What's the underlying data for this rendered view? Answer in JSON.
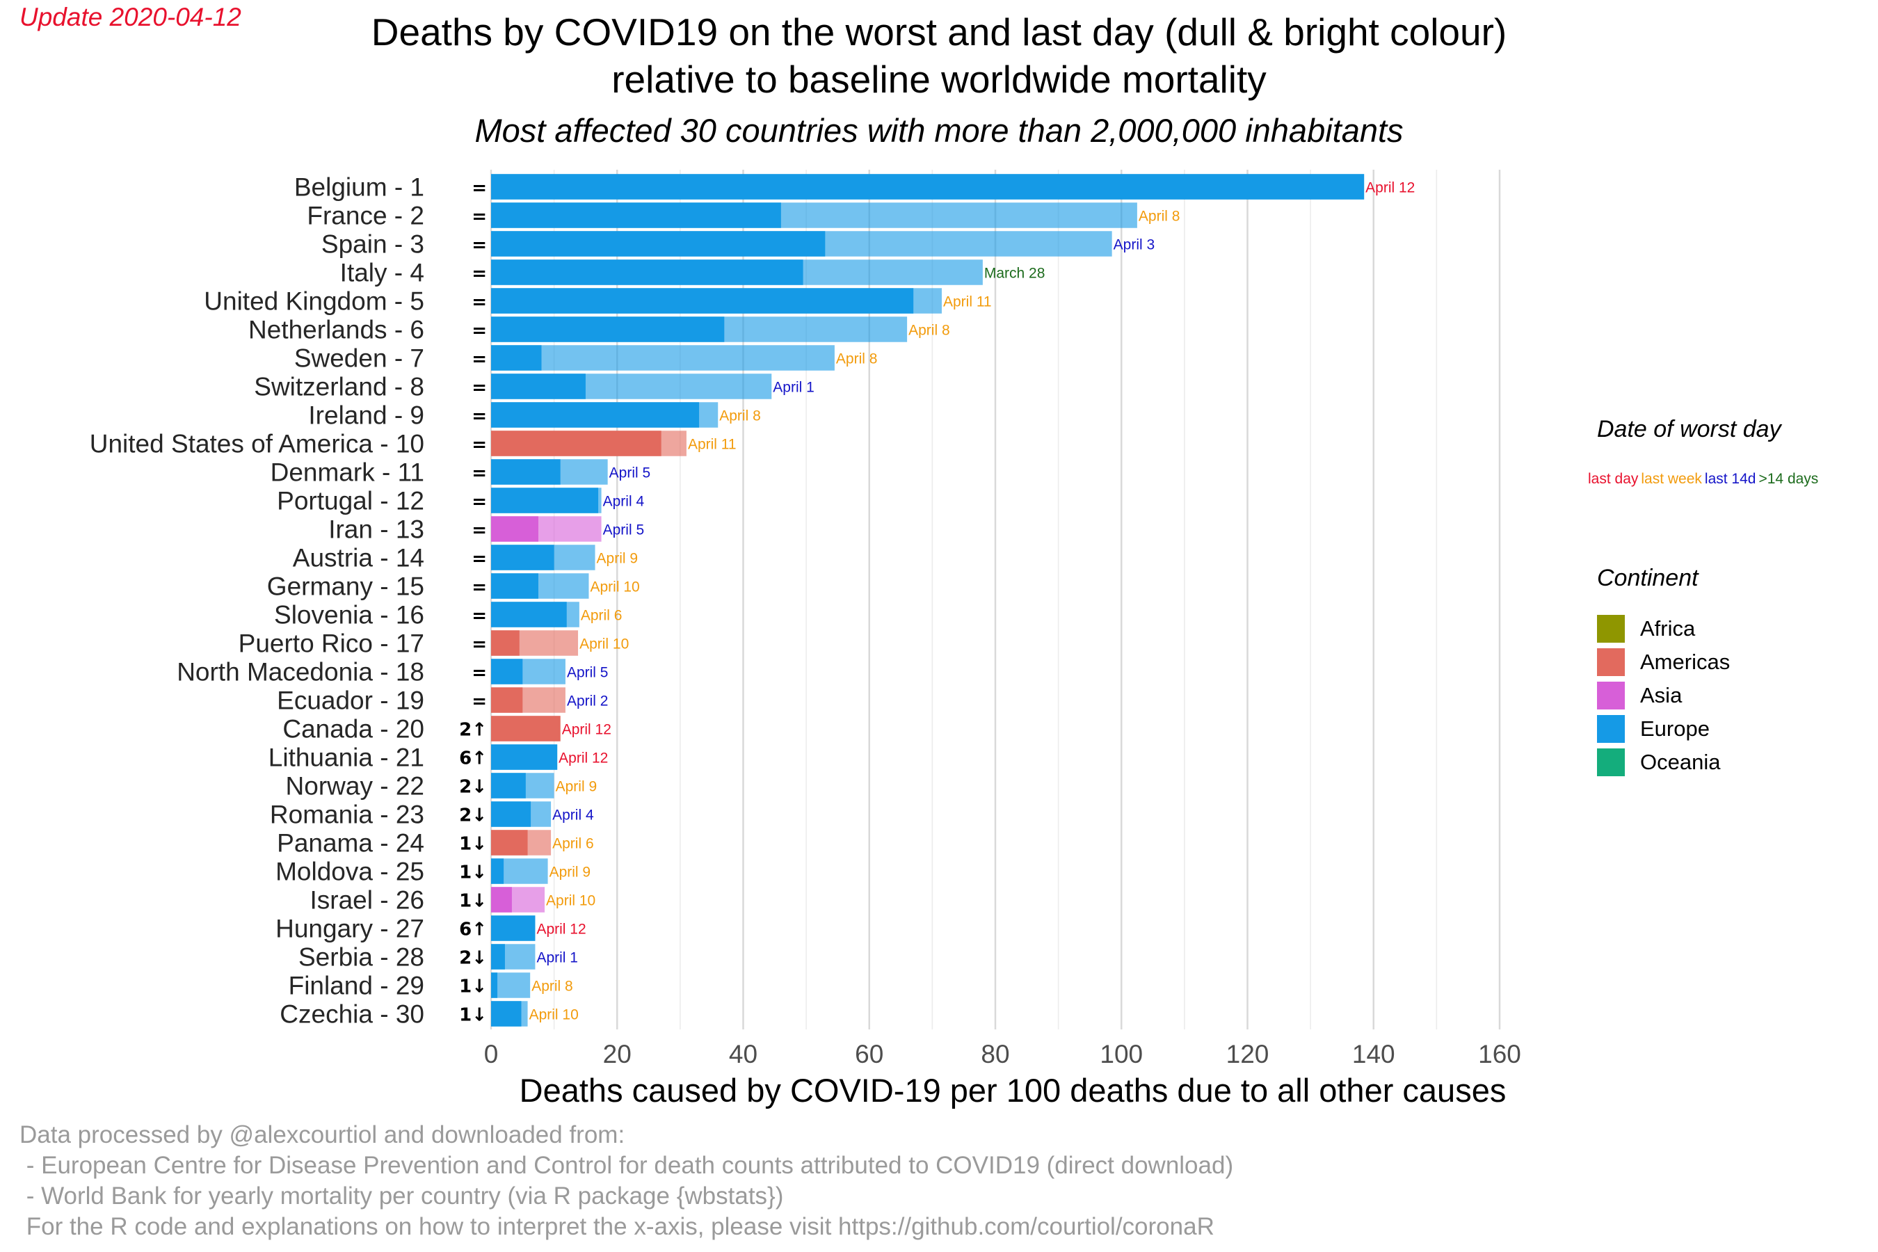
{
  "update_label": "Update 2020-04-12",
  "title_line1": "Deaths by COVID19 on the worst and last day (dull & bright colour)",
  "title_line2": "relative to baseline worldwide mortality",
  "subtitle": "Most affected 30 countries with more than 2,000,000 inhabitants",
  "colors": {
    "Africa": "#8f9600",
    "Americas": "#e26a5e",
    "Asia": "#d75fd8",
    "Europe": "#159ae6",
    "Oceania": "#14ad7c",
    "date_last_day": "#e8112d",
    "date_last_week": "#f29b0c",
    "date_last_14d": "#1414c8",
    "date_older": "#1c6b1c"
  },
  "legend_date": {
    "title": "Date of worst day",
    "items": [
      {
        "label": "last day",
        "color": "#e8112d"
      },
      {
        "label": "last week",
        "color": "#f29b0c"
      },
      {
        "label": "last 14d",
        "color": "#1414c8"
      },
      {
        "label": ">14 days",
        "color": "#1c6b1c"
      }
    ]
  },
  "legend_continent": {
    "title": "Continent",
    "items": [
      {
        "label": "Africa",
        "color": "#8f9600"
      },
      {
        "label": "Americas",
        "color": "#e26a5e"
      },
      {
        "label": "Asia",
        "color": "#d75fd8"
      },
      {
        "label": "Europe",
        "color": "#159ae6"
      },
      {
        "label": "Oceania",
        "color": "#14ad7c"
      }
    ]
  },
  "chart_data": {
    "type": "bar",
    "orientation": "horizontal",
    "xlabel": "Deaths caused by COVID-19 per 100 deaths due to all other causes",
    "ylabel": "",
    "xlim": [
      0,
      160
    ],
    "xticks": [
      0,
      20,
      40,
      60,
      80,
      100,
      120,
      140,
      160
    ],
    "grid": true,
    "legend_position": "right",
    "categories": [
      "Belgium - 1",
      "France - 2",
      "Spain - 3",
      "Italy - 4",
      "United Kingdom - 5",
      "Netherlands - 6",
      "Sweden - 7",
      "Switzerland - 8",
      "Ireland - 9",
      "United States of America - 10",
      "Denmark - 11",
      "Portugal - 12",
      "Iran - 13",
      "Austria - 14",
      "Germany - 15",
      "Slovenia - 16",
      "Puerto Rico - 17",
      "North Macedonia - 18",
      "Ecuador - 19",
      "Canada - 20",
      "Lithuania - 21",
      "Norway - 22",
      "Romania - 23",
      "Panama - 24",
      "Moldova - 25",
      "Israel - 26",
      "Hungary - 27",
      "Serbia - 28",
      "Finland - 29",
      "Czechia - 30"
    ],
    "rank_change": [
      "=",
      "=",
      "=",
      "=",
      "=",
      "=",
      "=",
      "=",
      "=",
      "=",
      "=",
      "=",
      "=",
      "=",
      "=",
      "=",
      "=",
      "=",
      "=",
      "2↑",
      "6↑",
      "2↓",
      "2↓",
      "1↓",
      "1↓",
      "1↓",
      "6↑",
      "2↓",
      "1↓",
      "1↓"
    ],
    "continent": [
      "Europe",
      "Europe",
      "Europe",
      "Europe",
      "Europe",
      "Europe",
      "Europe",
      "Europe",
      "Europe",
      "Americas",
      "Europe",
      "Europe",
      "Asia",
      "Europe",
      "Europe",
      "Europe",
      "Americas",
      "Europe",
      "Americas",
      "Americas",
      "Europe",
      "Europe",
      "Europe",
      "Americas",
      "Europe",
      "Asia",
      "Europe",
      "Europe",
      "Europe",
      "Europe"
    ],
    "series": [
      {
        "name": "last day",
        "values": [
          138.5,
          46,
          53,
          49.5,
          67,
          37,
          8,
          15,
          33,
          27,
          11,
          17,
          7.5,
          10,
          7.5,
          12,
          4.5,
          5,
          5,
          11,
          10.5,
          5.5,
          6.3,
          5.8,
          2,
          3.3,
          7,
          2.2,
          1,
          4.8
        ]
      },
      {
        "name": "worst day",
        "values": [
          138.5,
          102.5,
          98.5,
          78,
          71.5,
          66,
          54.5,
          44.5,
          36,
          31,
          18.5,
          17.5,
          17.5,
          16.5,
          15.5,
          14,
          13.8,
          11.8,
          11.8,
          11,
          10.5,
          10,
          9.5,
          9.5,
          9,
          8.5,
          7,
          7,
          6.2,
          5.8
        ]
      }
    ],
    "worst_day_label": [
      "April 12",
      "April 8",
      "April 3",
      "March 28",
      "April 11",
      "April 8",
      "April 8",
      "April 1",
      "April 8",
      "April 11",
      "April 5",
      "April 4",
      "April 5",
      "April 9",
      "April 10",
      "April 6",
      "April 10",
      "April 5",
      "April 2",
      "April 12",
      "April 12",
      "April 9",
      "April 4",
      "April 6",
      "April 9",
      "April 10",
      "April 12",
      "April 1",
      "April 8",
      "April 10"
    ],
    "worst_day_category": [
      "last day",
      "last week",
      "last 14d",
      ">14 days",
      "last week",
      "last week",
      "last week",
      "last 14d",
      "last week",
      "last week",
      "last 14d",
      "last 14d",
      "last 14d",
      "last week",
      "last week",
      "last week",
      "last week",
      "last 14d",
      "last 14d",
      "last day",
      "last day",
      "last week",
      "last 14d",
      "last week",
      "last week",
      "last week",
      "last day",
      "last 14d",
      "last week",
      "last week"
    ]
  },
  "notes": [
    "Data processed by @alexcourtiol and downloaded from:",
    " - European Centre for Disease Prevention and Control for death counts attributed to COVID19 (direct download)",
    " - World Bank for yearly mortality per country (via R package {wbstats})",
    " For the R code and explanations on how to interpret the x-axis, please visit https://github.com/courtiol/coronaR"
  ]
}
